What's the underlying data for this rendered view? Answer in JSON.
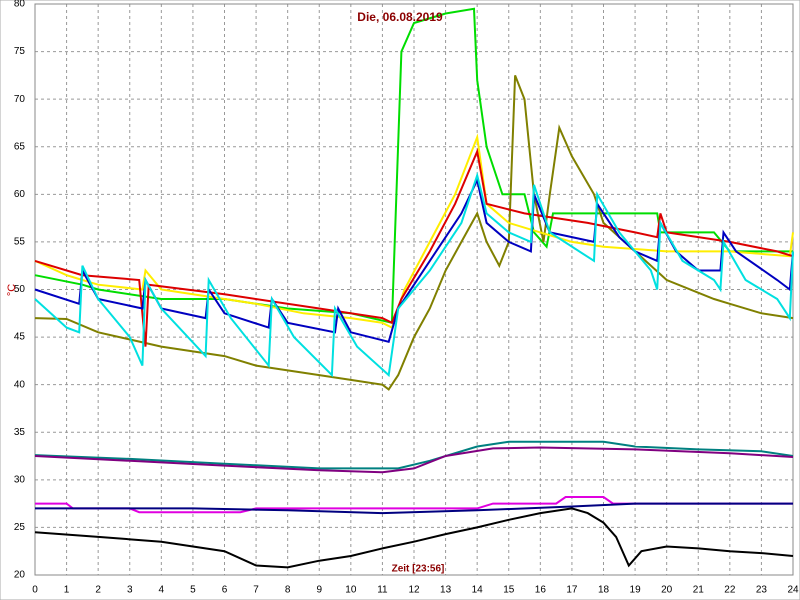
{
  "chart_data": {
    "type": "line",
    "title": "Die, 06.08.2019",
    "x_label": "Zeit [23:56]",
    "y_label": "°C",
    "xlim": [
      0,
      24
    ],
    "ylim": [
      20,
      80
    ],
    "xticks": [
      0,
      1,
      2,
      3,
      4,
      5,
      6,
      7,
      8,
      9,
      10,
      11,
      12,
      13,
      14,
      15,
      16,
      17,
      18,
      19,
      20,
      21,
      22,
      23,
      24
    ],
    "yticks": [
      20,
      25,
      30,
      35,
      40,
      45,
      50,
      55,
      60,
      65,
      70,
      75,
      80
    ],
    "grid": true,
    "series": [
      {
        "color": "#00dd00",
        "x": [
          0,
          1.5,
          2,
          4,
          6,
          8,
          10,
          11.3,
          11.6,
          12,
          13,
          13.9,
          14,
          14.3,
          14.8,
          15.5,
          15.8,
          16.2,
          16.4,
          17.6,
          18,
          19.7,
          19.8,
          21.5,
          22,
          24
        ],
        "values": [
          51.5,
          50.5,
          50,
          49,
          49,
          48,
          47.5,
          46.5,
          75,
          78,
          79,
          79.5,
          72,
          65,
          60,
          60,
          56,
          54.5,
          58,
          58,
          58,
          58,
          56,
          56,
          54,
          54
        ]
      },
      {
        "color": "#808000",
        "x": [
          0,
          1,
          2,
          4,
          6,
          7,
          9,
          10,
          11,
          11.2,
          11.5,
          12,
          12.5,
          13,
          13.5,
          14,
          14.3,
          14.7,
          15,
          15.2,
          15.5,
          15.8,
          16.1,
          16.3,
          16.6,
          17,
          17.7,
          18,
          19,
          20,
          21.5,
          22,
          23,
          24
        ],
        "values": [
          47,
          46.9,
          45.5,
          44,
          43,
          42,
          41,
          40.5,
          40,
          39.5,
          41,
          45,
          48,
          52,
          55,
          58,
          55,
          52.5,
          55,
          72.5,
          70,
          60,
          55,
          60,
          67,
          64,
          60,
          57,
          54,
          51,
          49,
          48.5,
          47.5,
          47
        ]
      },
      {
        "color": "#ffee00",
        "x": [
          0,
          1,
          1.5,
          2,
          3.4,
          3.5,
          4,
          5,
          6,
          7,
          8.5,
          10,
          11,
          11.3,
          11.7,
          12.5,
          13.3,
          14,
          14.3,
          15,
          16,
          17,
          18,
          20,
          22,
          23.9,
          24
        ],
        "values": [
          53,
          51.5,
          51,
          50.5,
          50,
          52,
          50,
          49.5,
          49,
          48.5,
          47.5,
          47,
          46.5,
          46,
          50,
          55,
          60,
          66,
          59,
          57,
          56,
          55,
          54.5,
          54,
          54,
          53.5,
          56
        ]
      },
      {
        "color": "#dd0000",
        "x": [
          0,
          1.5,
          3.3,
          3.5,
          3.6,
          6,
          9,
          11,
          11.3,
          11.6,
          12.5,
          13.3,
          14,
          14.3,
          15.5,
          16.5,
          17.5,
          19,
          19.7,
          19.8,
          20,
          22,
          23.5,
          24
        ],
        "values": [
          53,
          51.5,
          51,
          44,
          50.5,
          49.5,
          48,
          47,
          46.5,
          49,
          54,
          59,
          64.5,
          59,
          58,
          57.5,
          57,
          56,
          55.5,
          58,
          56,
          55,
          54,
          53.5
        ]
      },
      {
        "color": "#0000c0",
        "x": [
          0,
          1.4,
          1.5,
          2,
          3.4,
          3.5,
          4,
          5.4,
          5.5,
          6,
          7.4,
          7.5,
          8,
          9.5,
          9.6,
          10,
          11.2,
          11.5,
          12.5,
          13.5,
          14,
          14.3,
          15,
          15.7,
          15.8,
          16.3,
          17.7,
          17.8,
          18.5,
          19,
          19.7,
          19.8,
          20.3,
          21,
          21.7,
          21.8,
          22.2,
          23.5,
          23.9,
          24
        ],
        "values": [
          50,
          48.5,
          52,
          49,
          48,
          51,
          48,
          47,
          50,
          47.5,
          46,
          49,
          46.5,
          45.5,
          48,
          45.5,
          44.5,
          48,
          53,
          58,
          61.5,
          57,
          55,
          54,
          60,
          56,
          55,
          59,
          55.5,
          54,
          53,
          57,
          54,
          52,
          52,
          56,
          54,
          51,
          50,
          54
        ]
      },
      {
        "color": "#00e0e0",
        "x": [
          0,
          1,
          1.4,
          1.5,
          2,
          3,
          3.4,
          3.5,
          4,
          5.4,
          5.5,
          6.2,
          7.4,
          7.5,
          8.2,
          9.4,
          9.5,
          10.2,
          11.2,
          11.5,
          12.5,
          13.5,
          14,
          14.3,
          15,
          15.7,
          15.8,
          16.3,
          17.7,
          17.8,
          18.5,
          19.5,
          19.7,
          19.8,
          20.5,
          21.5,
          21.7,
          21.8,
          22.5,
          23.5,
          23.9,
          24
        ],
        "values": [
          49,
          46,
          45.5,
          52.5,
          49,
          45,
          42,
          51,
          48,
          43,
          51,
          47,
          42,
          49,
          45,
          41,
          48,
          44,
          41,
          48,
          52,
          57,
          62,
          58,
          56,
          55,
          61,
          56,
          53,
          60,
          56,
          52,
          50,
          57,
          53,
          51,
          50,
          55,
          51,
          49,
          47,
          54
        ]
      },
      {
        "color": "#008080",
        "x": [
          0,
          3,
          6,
          9,
          11.5,
          12.5,
          14,
          15,
          18,
          19,
          21,
          23,
          24
        ],
        "values": [
          32.6,
          32.2,
          31.7,
          31.2,
          31.2,
          32,
          33.5,
          34,
          34,
          33.5,
          33.2,
          33,
          32.5
        ]
      },
      {
        "color": "#800080",
        "x": [
          0,
          3,
          6,
          9,
          11,
          12,
          13,
          14.5,
          16,
          19,
          22,
          24
        ],
        "values": [
          32.5,
          32,
          31.5,
          31,
          30.8,
          31.2,
          32.5,
          33.3,
          33.4,
          33.2,
          32.8,
          32.4
        ]
      },
      {
        "color": "#e000e0",
        "x": [
          0,
          1,
          1.2,
          3,
          3.3,
          6.5,
          7,
          14,
          14.5,
          16.5,
          16.8,
          18,
          18.3,
          24
        ],
        "values": [
          27.5,
          27.5,
          27,
          27,
          26.6,
          26.6,
          27,
          27,
          27.5,
          27.5,
          28.2,
          28.2,
          27.5,
          27.5
        ]
      },
      {
        "color": "#000080",
        "x": [
          0,
          5,
          8,
          11,
          14,
          17,
          19,
          24
        ],
        "values": [
          27,
          27,
          26.8,
          26.5,
          26.8,
          27.2,
          27.5,
          27.5
        ]
      },
      {
        "color": "#000000",
        "x": [
          0,
          2,
          4,
          6,
          7,
          8,
          9,
          10,
          11,
          12,
          13,
          14,
          15,
          16,
          17,
          17.5,
          18,
          18.4,
          18.8,
          19.2,
          20,
          21,
          22,
          23,
          24
        ],
        "values": [
          24.5,
          24,
          23.5,
          22.5,
          21,
          20.8,
          21.5,
          22,
          22.8,
          23.5,
          24.3,
          25,
          25.8,
          26.5,
          27,
          26.5,
          25.5,
          24,
          21,
          22.5,
          23,
          22.8,
          22.5,
          22.3,
          22
        ]
      }
    ]
  }
}
